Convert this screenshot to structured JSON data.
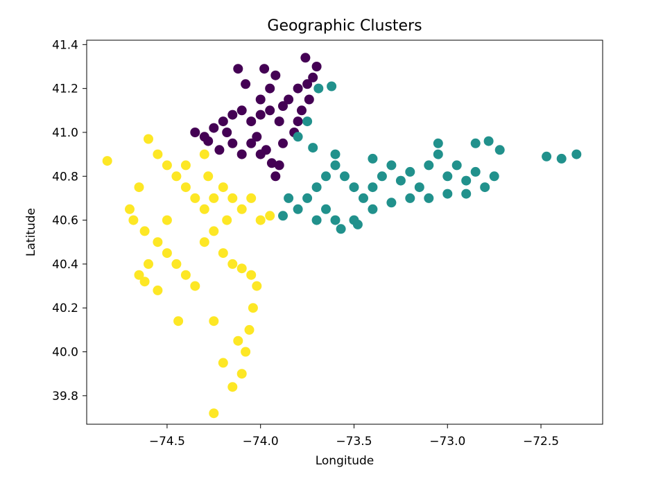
{
  "chart_data": {
    "type": "scatter",
    "title": "Geographic Clusters",
    "xlabel": "Longitude",
    "ylabel": "Latitude",
    "xlim": [
      -74.93,
      -72.17
    ],
    "ylim": [
      39.67,
      41.42
    ],
    "xticks": [
      -74.5,
      -74.0,
      -73.5,
      -73.0,
      -72.5
    ],
    "xtick_labels": [
      "−74.5",
      "−74.0",
      "−73.5",
      "−73.0",
      "−72.5"
    ],
    "yticks": [
      39.8,
      40.0,
      40.2,
      40.4,
      40.6,
      40.8,
      41.0,
      41.2,
      41.4
    ],
    "ytick_labels": [
      "39.8",
      "40.0",
      "40.2",
      "40.4",
      "40.6",
      "40.8",
      "41.0",
      "41.2",
      "41.4"
    ],
    "grid": false,
    "colors": {
      "cluster_purple": "#440154",
      "cluster_teal": "#21918c",
      "cluster_yellow": "#fde725"
    },
    "series": [
      {
        "color": "#440154",
        "points": [
          [
            -74.35,
            41.0
          ],
          [
            -74.3,
            40.98
          ],
          [
            -74.25,
            41.02
          ],
          [
            -74.2,
            41.05
          ],
          [
            -74.15,
            41.08
          ],
          [
            -74.1,
            41.1
          ],
          [
            -74.05,
            41.05
          ],
          [
            -74.0,
            41.08
          ],
          [
            -73.95,
            41.1
          ],
          [
            -73.9,
            41.05
          ],
          [
            -73.85,
            41.15
          ],
          [
            -73.8,
            41.2
          ],
          [
            -73.75,
            41.22
          ],
          [
            -73.72,
            41.25
          ],
          [
            -73.78,
            41.1
          ],
          [
            -74.12,
            41.29
          ],
          [
            -73.98,
            41.29
          ],
          [
            -73.92,
            41.26
          ],
          [
            -73.76,
            41.34
          ],
          [
            -73.7,
            41.3
          ],
          [
            -74.08,
            41.22
          ],
          [
            -74.02,
            40.98
          ],
          [
            -73.97,
            40.92
          ],
          [
            -73.94,
            40.86
          ],
          [
            -74.05,
            40.95
          ],
          [
            -74.15,
            40.95
          ],
          [
            -74.22,
            40.92
          ],
          [
            -74.28,
            40.96
          ],
          [
            -73.88,
            40.95
          ],
          [
            -73.82,
            41.0
          ],
          [
            -73.9,
            40.85
          ],
          [
            -73.92,
            40.8
          ],
          [
            -73.88,
            41.12
          ],
          [
            -73.8,
            41.05
          ],
          [
            -73.74,
            41.15
          ],
          [
            -74.0,
            41.15
          ],
          [
            -73.95,
            41.2
          ],
          [
            -74.18,
            41.0
          ],
          [
            -74.1,
            40.9
          ],
          [
            -74.0,
            40.9
          ]
        ]
      },
      {
        "color": "#21918c",
        "points": [
          [
            -73.88,
            40.62
          ],
          [
            -73.8,
            40.65
          ],
          [
            -73.75,
            40.7
          ],
          [
            -73.7,
            40.75
          ],
          [
            -73.65,
            40.8
          ],
          [
            -73.6,
            40.85
          ],
          [
            -73.55,
            40.8
          ],
          [
            -73.5,
            40.75
          ],
          [
            -73.45,
            40.7
          ],
          [
            -73.4,
            40.75
          ],
          [
            -73.35,
            40.8
          ],
          [
            -73.3,
            40.85
          ],
          [
            -73.25,
            40.78
          ],
          [
            -73.2,
            40.82
          ],
          [
            -73.15,
            40.75
          ],
          [
            -73.1,
            40.85
          ],
          [
            -73.05,
            40.9
          ],
          [
            -73.0,
            40.8
          ],
          [
            -72.95,
            40.85
          ],
          [
            -72.9,
            40.78
          ],
          [
            -72.85,
            40.82
          ],
          [
            -72.8,
            40.75
          ],
          [
            -72.75,
            40.8
          ],
          [
            -72.72,
            40.92
          ],
          [
            -72.78,
            40.96
          ],
          [
            -72.85,
            40.95
          ],
          [
            -73.05,
            40.95
          ],
          [
            -73.8,
            40.98
          ],
          [
            -73.75,
            41.05
          ],
          [
            -73.72,
            40.93
          ],
          [
            -73.69,
            41.2
          ],
          [
            -73.62,
            41.21
          ],
          [
            -72.47,
            40.89
          ],
          [
            -72.39,
            40.88
          ],
          [
            -72.31,
            40.9
          ],
          [
            -73.6,
            40.6
          ],
          [
            -73.5,
            40.6
          ],
          [
            -73.4,
            40.65
          ],
          [
            -73.3,
            40.68
          ],
          [
            -73.2,
            40.7
          ],
          [
            -73.6,
            40.9
          ],
          [
            -73.4,
            40.88
          ],
          [
            -73.0,
            40.72
          ],
          [
            -73.65,
            40.65
          ],
          [
            -73.85,
            40.7
          ],
          [
            -73.1,
            40.7
          ],
          [
            -72.9,
            40.72
          ],
          [
            -73.57,
            40.56
          ],
          [
            -73.48,
            40.58
          ],
          [
            -73.7,
            40.6
          ]
        ]
      },
      {
        "color": "#fde725",
        "points": [
          [
            -74.82,
            40.87
          ],
          [
            -74.6,
            40.97
          ],
          [
            -74.55,
            40.9
          ],
          [
            -74.5,
            40.85
          ],
          [
            -74.45,
            40.8
          ],
          [
            -74.4,
            40.75
          ],
          [
            -74.35,
            40.7
          ],
          [
            -74.3,
            40.65
          ],
          [
            -74.25,
            40.7
          ],
          [
            -74.2,
            40.75
          ],
          [
            -74.15,
            40.7
          ],
          [
            -74.1,
            40.65
          ],
          [
            -74.05,
            40.7
          ],
          [
            -74.0,
            40.6
          ],
          [
            -73.95,
            40.62
          ],
          [
            -74.65,
            40.75
          ],
          [
            -74.7,
            40.65
          ],
          [
            -74.68,
            40.6
          ],
          [
            -74.62,
            40.55
          ],
          [
            -74.55,
            40.5
          ],
          [
            -74.5,
            40.45
          ],
          [
            -74.6,
            40.4
          ],
          [
            -74.65,
            40.35
          ],
          [
            -74.62,
            40.32
          ],
          [
            -74.55,
            40.28
          ],
          [
            -74.45,
            40.4
          ],
          [
            -74.4,
            40.35
          ],
          [
            -74.35,
            40.3
          ],
          [
            -74.3,
            40.5
          ],
          [
            -74.25,
            40.55
          ],
          [
            -74.2,
            40.45
          ],
          [
            -74.15,
            40.4
          ],
          [
            -74.1,
            40.38
          ],
          [
            -74.05,
            40.35
          ],
          [
            -74.02,
            40.3
          ],
          [
            -74.04,
            40.2
          ],
          [
            -74.06,
            40.1
          ],
          [
            -74.08,
            40.0
          ],
          [
            -74.1,
            39.9
          ],
          [
            -74.25,
            39.72
          ],
          [
            -74.15,
            39.84
          ],
          [
            -74.2,
            39.95
          ],
          [
            -74.25,
            40.14
          ],
          [
            -74.44,
            40.14
          ],
          [
            -74.12,
            40.05
          ],
          [
            -74.5,
            40.6
          ],
          [
            -74.4,
            40.85
          ],
          [
            -74.3,
            40.9
          ],
          [
            -74.18,
            40.6
          ],
          [
            -74.28,
            40.8
          ]
        ]
      }
    ]
  }
}
